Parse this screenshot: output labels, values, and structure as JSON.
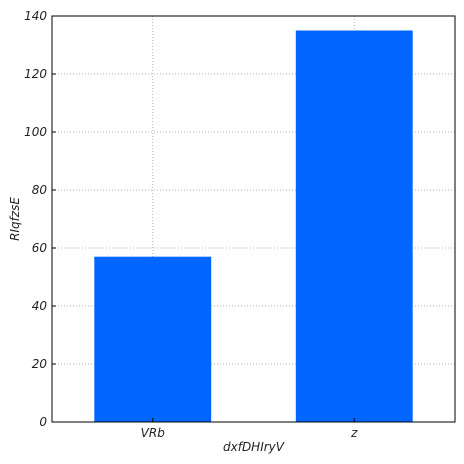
{
  "chart_data": {
    "type": "bar",
    "categories": [
      "VRb",
      "z"
    ],
    "values": [
      57,
      135
    ],
    "xlabel": "dxfDHIryV",
    "ylabel": "RIqfzsE",
    "ylim": [
      0,
      140
    ],
    "yticks": [
      0,
      20,
      40,
      60,
      80,
      100,
      120,
      140
    ],
    "grid": true,
    "bar_color": "#0066ff"
  }
}
